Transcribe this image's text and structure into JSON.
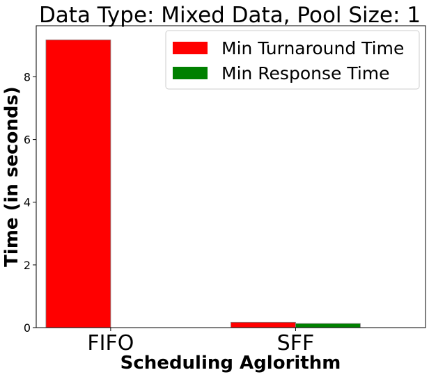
{
  "chart_data": {
    "type": "bar",
    "title": "Data Type: Mixed Data, Pool Size: 1",
    "xlabel": "Scheduling Aglorithm",
    "ylabel": "Time (in seconds)",
    "categories": [
      "FIFO",
      "SFF"
    ],
    "series": [
      {
        "name": "Min Turnaround Time",
        "color": "#ff0000",
        "values": [
          9.18,
          0.17
        ]
      },
      {
        "name": "Min Response Time",
        "color": "#008000",
        "values": [
          0.0,
          0.13
        ]
      }
    ],
    "yticks": [
      0,
      2,
      4,
      6,
      8
    ],
    "ylim": [
      0,
      9.63
    ],
    "grid": false,
    "legend": "top-right"
  }
}
